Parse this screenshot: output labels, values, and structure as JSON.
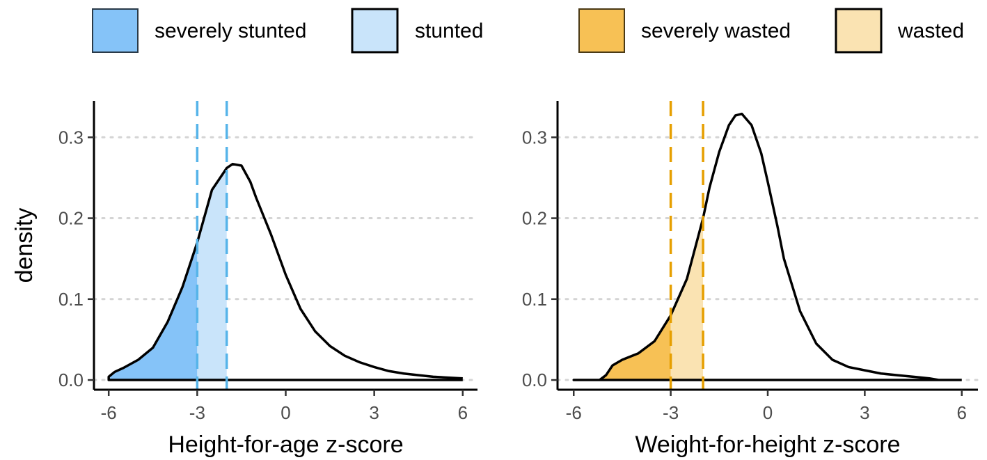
{
  "legend": {
    "items": [
      {
        "key": "severe_stunted",
        "label": "severely stunted",
        "fill": "#85C3F8",
        "stroke": "#2a3a48",
        "stroke_width": 2
      },
      {
        "key": "stunted",
        "label": "stunted",
        "fill": "#C9E4FA",
        "stroke": "#000000",
        "stroke_width": 3
      },
      {
        "key": "severe_wasted",
        "label": "severely wasted",
        "fill": "#F7C155",
        "stroke": "#4a3a16",
        "stroke_width": 2
      },
      {
        "key": "wasted",
        "label": "wasted",
        "fill": "#FAE3B2",
        "stroke": "#000000",
        "stroke_width": 3
      }
    ]
  },
  "chart_data": [
    {
      "type": "area",
      "xlabel": "Height-for-age z-score",
      "ylabel": "density",
      "xlim": [
        -6.5,
        6.5
      ],
      "ylim": [
        -0.012,
        0.345
      ],
      "xticks": [
        -6,
        -3,
        0,
        3,
        6
      ],
      "xtick_labels": [
        "-6",
        "-3",
        "0",
        "3",
        "6"
      ],
      "yticks": [
        0.0,
        0.1,
        0.2,
        0.3
      ],
      "ytick_labels": [
        "0.0",
        "0.1",
        "0.2",
        "0.3"
      ],
      "grid": "horizontal-dotted",
      "thresholds": [
        -3,
        -2
      ],
      "threshold_color": "#56B4E9",
      "severe_fill": "#85C3F8",
      "moderate_fill": "#C9E4FA",
      "density": {
        "x": [
          -6.0,
          -5.8,
          -5.5,
          -5.0,
          -4.5,
          -4.0,
          -3.5,
          -3.0,
          -2.5,
          -2.0,
          -1.8,
          -1.5,
          -1.2,
          -1.0,
          -0.5,
          0.0,
          0.5,
          1.0,
          1.5,
          2.0,
          2.5,
          3.0,
          3.5,
          4.0,
          4.5,
          5.0,
          5.5,
          6.0
        ],
        "y": [
          0.004,
          0.01,
          0.015,
          0.025,
          0.04,
          0.072,
          0.115,
          0.17,
          0.235,
          0.262,
          0.267,
          0.265,
          0.245,
          0.225,
          0.18,
          0.13,
          0.088,
          0.06,
          0.042,
          0.03,
          0.022,
          0.016,
          0.011,
          0.008,
          0.006,
          0.004,
          0.003,
          0.002
        ]
      }
    },
    {
      "type": "area",
      "xlabel": "Weight-for-height z-score",
      "ylabel": "",
      "xlim": [
        -6.5,
        6.5
      ],
      "ylim": [
        -0.012,
        0.345
      ],
      "xticks": [
        -6,
        -3,
        0,
        3,
        6
      ],
      "xtick_labels": [
        "-6",
        "-3",
        "0",
        "3",
        "6"
      ],
      "yticks": [
        0.0,
        0.1,
        0.2,
        0.3
      ],
      "ytick_labels": [
        "0.0",
        "0.1",
        "0.2",
        "0.3"
      ],
      "grid": "horizontal-dotted",
      "thresholds": [
        -3,
        -2
      ],
      "threshold_color": "#E69F00",
      "severe_fill": "#F7C155",
      "moderate_fill": "#FAE3B2",
      "density": {
        "x": [
          -6.0,
          -5.5,
          -5.2,
          -5.0,
          -4.8,
          -4.5,
          -4.0,
          -3.5,
          -3.0,
          -2.5,
          -2.0,
          -1.8,
          -1.5,
          -1.2,
          -1.0,
          -0.8,
          -0.5,
          -0.2,
          0.0,
          0.3,
          0.5,
          1.0,
          1.5,
          2.0,
          2.5,
          3.0,
          3.5,
          4.0,
          4.5,
          5.0,
          5.3,
          6.0
        ],
        "y": [
          0.0,
          0.0,
          0.0,
          0.006,
          0.018,
          0.025,
          0.033,
          0.048,
          0.08,
          0.125,
          0.2,
          0.238,
          0.282,
          0.315,
          0.327,
          0.329,
          0.315,
          0.28,
          0.245,
          0.19,
          0.15,
          0.085,
          0.045,
          0.025,
          0.016,
          0.012,
          0.008,
          0.006,
          0.004,
          0.002,
          0.0,
          0.0
        ]
      }
    }
  ]
}
